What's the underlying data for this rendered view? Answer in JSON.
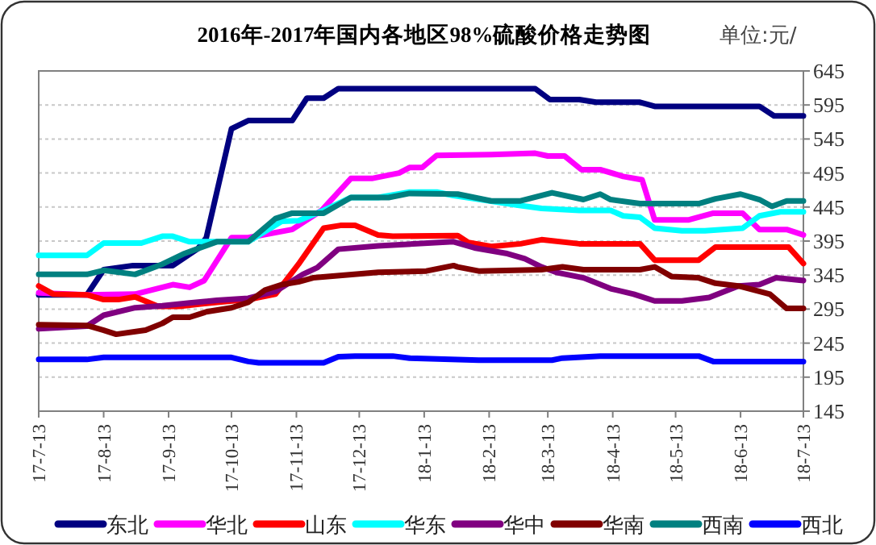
{
  "chart_data": {
    "type": "line",
    "title": "2016年-2017年国内各地区98%硫酸价格走势图",
    "ylabel": "单位:元/",
    "xlim": [
      "2017-07-13",
      "2018-07-13"
    ],
    "xticks": [
      {
        "value": "2017-07-13",
        "label": "17-7-13"
      },
      {
        "value": "2017-08-13",
        "label": "17-8-13"
      },
      {
        "value": "2017-09-13",
        "label": "17-9-13"
      },
      {
        "value": "2017-10-13",
        "label": "17-10-13"
      },
      {
        "value": "2017-11-13",
        "label": "17-11-13"
      },
      {
        "value": "2017-12-13",
        "label": "17-12-13"
      },
      {
        "value": "2018-01-13",
        "label": "18-1-13"
      },
      {
        "value": "2018-02-13",
        "label": "18-2-13"
      },
      {
        "value": "2018-03-13",
        "label": "18-3-13"
      },
      {
        "value": "2018-04-13",
        "label": "18-4-13"
      },
      {
        "value": "2018-05-13",
        "label": "18-5-13"
      },
      {
        "value": "2018-06-13",
        "label": "18-6-13"
      },
      {
        "value": "2018-07-13",
        "label": "18-7-13"
      }
    ],
    "ylim": [
      145,
      645
    ],
    "yticks": [
      145,
      195,
      245,
      295,
      345,
      395,
      445,
      495,
      545,
      595,
      645
    ],
    "grid": "y",
    "legend": "bottom",
    "marker": "none",
    "line_style": "solid",
    "series": [
      {
        "name": "东北",
        "color": "#000080",
        "x": [
          "2017-07-13",
          "2017-08-05",
          "2017-08-13",
          "2017-08-27",
          "2017-09-15",
          "2017-09-27",
          "2017-10-01",
          "2017-10-13",
          "2017-10-21",
          "2017-11-11",
          "2017-11-18",
          "2017-11-26",
          "2017-12-03",
          "2018-03-07",
          "2018-03-14",
          "2018-03-28",
          "2018-04-05",
          "2018-04-26",
          "2018-05-03",
          "2018-06-22",
          "2018-06-29",
          "2018-07-13"
        ],
        "values": [
          316,
          316,
          353,
          359,
          359,
          384,
          400,
          560,
          572,
          572,
          605,
          605,
          619,
          619,
          603,
          603,
          599,
          599,
          593,
          593,
          579,
          579
        ]
      },
      {
        "name": "华北",
        "color": "#ff00ff",
        "x": [
          "2017-07-13",
          "2017-08-05",
          "2017-08-28",
          "2017-09-15",
          "2017-09-23",
          "2017-09-30",
          "2017-10-13",
          "2017-10-21",
          "2017-11-11",
          "2017-11-25",
          "2017-12-09",
          "2017-12-19",
          "2018-01-01",
          "2018-01-06",
          "2018-01-12",
          "2018-01-19",
          "2018-02-14",
          "2018-03-07",
          "2018-03-13",
          "2018-03-21",
          "2018-03-29",
          "2018-04-07",
          "2018-04-18",
          "2018-04-27",
          "2018-05-03",
          "2018-05-19",
          "2018-05-31",
          "2018-06-14",
          "2018-06-22",
          "2018-07-05",
          "2018-07-13"
        ],
        "values": [
          319,
          316,
          317,
          331,
          327,
          337,
          400,
          400,
          412,
          440,
          487,
          487,
          495,
          503,
          503,
          521,
          522,
          524,
          520,
          520,
          500,
          500,
          490,
          485,
          426,
          426,
          436,
          436,
          412,
          412,
          404
        ]
      },
      {
        "name": "山东",
        "color": "#ff0000",
        "x": [
          "2017-07-13",
          "2017-07-20",
          "2017-08-05",
          "2017-08-13",
          "2017-08-20",
          "2017-08-28",
          "2017-09-08",
          "2017-09-18",
          "2017-10-06",
          "2017-10-21",
          "2017-11-03",
          "2017-11-14",
          "2017-11-26",
          "2017-12-04",
          "2017-12-11",
          "2017-12-22",
          "2017-12-29",
          "2018-01-29",
          "2018-02-03",
          "2018-02-14",
          "2018-02-28",
          "2018-03-10",
          "2018-03-28",
          "2018-04-26",
          "2018-05-03",
          "2018-05-24",
          "2018-06-01",
          "2018-07-06",
          "2018-07-13"
        ],
        "values": [
          329,
          317,
          316,
          309,
          309,
          313,
          299,
          299,
          305,
          309,
          317,
          361,
          414,
          418,
          418,
          404,
          402,
          403,
          393,
          387,
          391,
          397,
          391,
          391,
          367,
          367,
          386,
          386,
          362
        ]
      },
      {
        "name": "华东",
        "color": "#00ffff",
        "x": [
          "2017-07-13",
          "2017-08-05",
          "2017-08-13",
          "2017-08-31",
          "2017-09-10",
          "2017-09-15",
          "2017-09-23",
          "2017-10-21",
          "2017-11-06",
          "2017-11-14",
          "2017-11-26",
          "2017-12-09",
          "2017-12-22",
          "2018-01-06",
          "2018-01-19",
          "2018-01-27",
          "2018-02-26",
          "2018-03-10",
          "2018-03-28",
          "2018-04-12",
          "2018-04-18",
          "2018-04-26",
          "2018-05-03",
          "2018-05-16",
          "2018-05-27",
          "2018-06-14",
          "2018-06-22",
          "2018-07-02",
          "2018-07-13"
        ],
        "values": [
          374,
          374,
          392,
          392,
          402,
          402,
          394,
          394,
          424,
          425,
          440,
          459,
          459,
          467,
          467,
          462,
          448,
          443,
          440,
          440,
          432,
          430,
          414,
          410,
          410,
          414,
          432,
          438,
          438
        ]
      },
      {
        "name": "华中",
        "color": "#800080",
        "x": [
          "2017-07-13",
          "2017-08-05",
          "2017-08-13",
          "2017-08-28",
          "2017-09-10",
          "2017-09-23",
          "2017-10-06",
          "2017-10-21",
          "2017-11-03",
          "2017-11-16",
          "2017-11-23",
          "2017-12-03",
          "2017-12-22",
          "2018-01-27",
          "2018-02-06",
          "2018-02-21",
          "2018-03-02",
          "2018-03-10",
          "2018-03-17",
          "2018-03-30",
          "2018-04-12",
          "2018-04-23",
          "2018-05-03",
          "2018-05-16",
          "2018-05-29",
          "2018-06-12",
          "2018-06-22",
          "2018-06-30",
          "2018-07-13"
        ],
        "values": [
          266,
          270,
          286,
          297,
          300,
          304,
          308,
          311,
          321,
          346,
          356,
          383,
          388,
          394,
          385,
          377,
          369,
          357,
          349,
          341,
          325,
          317,
          307,
          307,
          312,
          329,
          331,
          341,
          337
        ]
      },
      {
        "name": "华南",
        "color": "#800000",
        "x": [
          "2017-07-13",
          "2017-08-05",
          "2017-08-13",
          "2017-08-19",
          "2017-09-02",
          "2017-09-10",
          "2017-09-15",
          "2017-09-23",
          "2017-10-01",
          "2017-10-13",
          "2017-10-21",
          "2017-10-29",
          "2017-11-06",
          "2017-11-14",
          "2017-11-21",
          "2017-12-06",
          "2017-12-22",
          "2018-01-14",
          "2018-01-27",
          "2018-01-29",
          "2018-02-08",
          "2018-03-10",
          "2018-03-20",
          "2018-03-30",
          "2018-04-26",
          "2018-05-03",
          "2018-05-11",
          "2018-05-24",
          "2018-06-01",
          "2018-06-12",
          "2018-06-27",
          "2018-07-05",
          "2018-07-13"
        ],
        "values": [
          272,
          271,
          264,
          258,
          264,
          274,
          283,
          283,
          291,
          297,
          305,
          323,
          331,
          335,
          341,
          345,
          349,
          351,
          359,
          357,
          351,
          353,
          357,
          353,
          353,
          357,
          343,
          341,
          333,
          329,
          317,
          296,
          296
        ]
      },
      {
        "name": "西南",
        "color": "#008080",
        "x": [
          "2017-07-13",
          "2017-08-05",
          "2017-08-13",
          "2017-08-28",
          "2017-09-10",
          "2017-09-20",
          "2017-10-06",
          "2017-10-21",
          "2017-11-03",
          "2017-11-11",
          "2017-11-26",
          "2017-12-09",
          "2017-12-27",
          "2018-01-06",
          "2018-01-29",
          "2018-02-14",
          "2018-02-28",
          "2018-03-15",
          "2018-03-30",
          "2018-04-07",
          "2018-04-12",
          "2018-04-26",
          "2018-05-24",
          "2018-06-01",
          "2018-06-13",
          "2018-06-22",
          "2018-06-28",
          "2018-07-05",
          "2018-07-13"
        ],
        "values": [
          346,
          346,
          352,
          346,
          361,
          376,
          394,
          394,
          428,
          436,
          436,
          459,
          459,
          465,
          464,
          454,
          454,
          466,
          456,
          464,
          456,
          450,
          450,
          457,
          464,
          456,
          446,
          454,
          454
        ]
      },
      {
        "name": "西北",
        "color": "#0000ff",
        "x": [
          "2017-07-13",
          "2017-08-05",
          "2017-08-13",
          "2017-10-13",
          "2017-10-21",
          "2017-10-26",
          "2017-11-26",
          "2017-12-03",
          "2017-12-11",
          "2017-12-29",
          "2018-01-06",
          "2018-02-08",
          "2018-03-15",
          "2018-03-20",
          "2018-04-07",
          "2018-05-24",
          "2018-05-31",
          "2018-07-13"
        ],
        "values": [
          221,
          221,
          224,
          224,
          218,
          216,
          216,
          225,
          226,
          226,
          223,
          220,
          220,
          223,
          226,
          226,
          218,
          218
        ]
      }
    ]
  }
}
